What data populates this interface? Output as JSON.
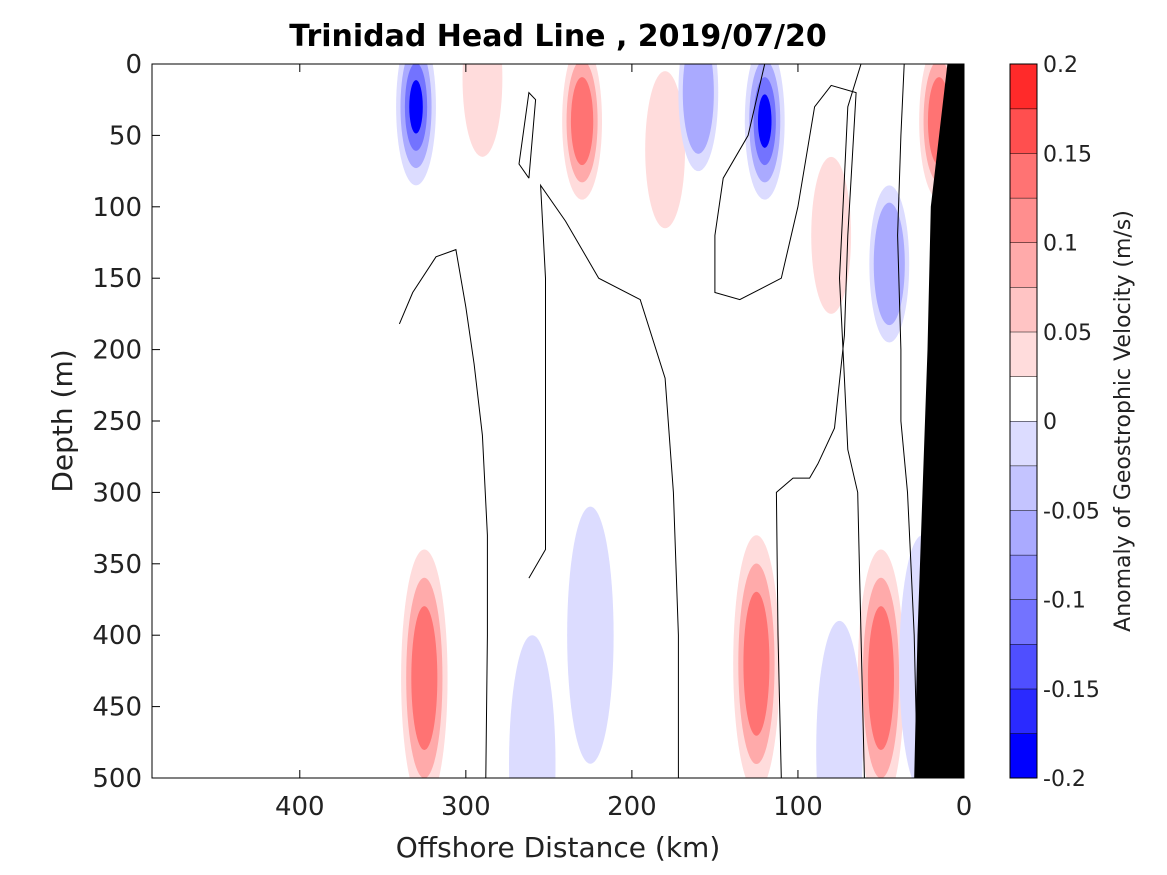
{
  "chart_data": {
    "type": "contour",
    "title": "Trinidad Head Line , 2019/07/20",
    "xlabel": "Offshore Distance (km)",
    "ylabel": "Depth (m)",
    "xlim": [
      489,
      0
    ],
    "ylim": [
      0,
      500
    ],
    "y_reversed": true,
    "x_reversed": true,
    "grid": false,
    "x_ticks": [
      400,
      300,
      200,
      100,
      0
    ],
    "y_ticks": [
      0,
      50,
      100,
      150,
      200,
      250,
      300,
      350,
      400,
      450,
      500
    ],
    "colorbar": {
      "label": "Anomaly of Geostrophic Velocity (m/s)",
      "range": [
        -0.2,
        0.2
      ],
      "levels": [
        -0.2,
        -0.175,
        -0.15,
        -0.125,
        -0.1,
        -0.075,
        -0.05,
        -0.025,
        0,
        0.025,
        0.05,
        0.075,
        0.1,
        0.125,
        0.15,
        0.175,
        0.2
      ],
      "tick_values": [
        0.2,
        0.15,
        0.1,
        0.05,
        0,
        -0.05,
        -0.1,
        -0.15,
        -0.2
      ],
      "tick_labels": [
        "0.2",
        "0.15",
        "0.1",
        "0.05",
        "0",
        "-0.05",
        "-0.1",
        "-0.15",
        "-0.2"
      ]
    },
    "colors": {
      "neg3": "#0000ff",
      "neg2": "#7373ff",
      "neg1": "#aaaaff",
      "neg0": "#dcdcff",
      "zero": "#ffffff",
      "pos0": "#ffdcdc",
      "pos1": "#ffaaaa",
      "pos2": "#ff7373",
      "pos3": "#ff0000",
      "bathymetry": "#000000"
    },
    "data_extent": {
      "x_min": 0,
      "x_max": 340
    },
    "features": [
      {
        "type": "negative",
        "x_center": 330,
        "depth_center": 30,
        "peak": -0.13
      },
      {
        "type": "positive",
        "x_center": 290,
        "depth_center": 10,
        "peak": 0.05
      },
      {
        "type": "positive",
        "x_center": 230,
        "depth_center": 40,
        "peak": 0.12
      },
      {
        "type": "positive",
        "x_center": 180,
        "depth_center": 60,
        "peak": 0.05
      },
      {
        "type": "negative",
        "x_center": 160,
        "depth_center": 20,
        "peak": -0.07
      },
      {
        "type": "negative",
        "x_center": 120,
        "depth_center": 40,
        "peak": -0.14
      },
      {
        "type": "positive",
        "x_center": 80,
        "depth_center": 120,
        "peak": 0.04
      },
      {
        "type": "negative",
        "x_center": 45,
        "depth_center": 140,
        "peak": -0.08
      },
      {
        "type": "positive",
        "x_center": 15,
        "depth_center": 40,
        "peak": 0.12
      },
      {
        "type": "negative",
        "x_center": 225,
        "depth_center": 400,
        "peak": -0.04
      },
      {
        "type": "positive",
        "x_center": 125,
        "depth_center": 420,
        "peak": 0.09
      },
      {
        "type": "positive",
        "x_center": 325,
        "depth_center": 430,
        "peak": 0.09
      },
      {
        "type": "positive",
        "x_center": 50,
        "depth_center": 430,
        "peak": 0.09
      },
      {
        "type": "negative",
        "x_center": 75,
        "depth_center": 480,
        "peak": -0.04
      },
      {
        "type": "negative",
        "x_center": 260,
        "depth_center": 490,
        "peak": -0.04
      },
      {
        "type": "negative",
        "x_center": 25,
        "depth_center": 420,
        "peak": -0.05
      }
    ],
    "zero_contours": [
      [
        [
          340,
          182
        ],
        [
          332,
          160
        ],
        [
          318,
          135
        ],
        [
          306,
          130
        ],
        [
          300,
          170
        ],
        [
          295,
          210
        ],
        [
          290,
          260
        ],
        [
          287,
          330
        ],
        [
          287,
          400
        ],
        [
          288,
          500
        ]
      ],
      [
        [
          262,
          80
        ],
        [
          268,
          70
        ],
        [
          262,
          20
        ],
        [
          258,
          25
        ],
        [
          262,
          80
        ]
      ],
      [
        [
          262,
          360
        ],
        [
          252,
          340
        ],
        [
          252,
          240
        ],
        [
          252,
          150
        ],
        [
          255,
          85
        ],
        [
          240,
          110
        ],
        [
          220,
          150
        ],
        [
          195,
          165
        ],
        [
          180,
          220
        ],
        [
          175,
          300
        ],
        [
          172,
          400
        ],
        [
          172,
          500
        ]
      ],
      [
        [
          110,
          500
        ],
        [
          112,
          400
        ],
        [
          113,
          300
        ],
        [
          103,
          290
        ],
        [
          93,
          290
        ],
        [
          88,
          280
        ],
        [
          78,
          255
        ],
        [
          72,
          190
        ],
        [
          70,
          120
        ],
        [
          65,
          20
        ],
        [
          80,
          15
        ],
        [
          90,
          30
        ],
        [
          100,
          100
        ],
        [
          110,
          150
        ],
        [
          135,
          165
        ],
        [
          150,
          160
        ],
        [
          150,
          120
        ],
        [
          145,
          80
        ],
        [
          130,
          50
        ],
        [
          120,
          0
        ]
      ],
      [
        [
          60,
          500
        ],
        [
          62,
          400
        ],
        [
          64,
          300
        ],
        [
          70,
          270
        ],
        [
          72,
          220
        ],
        [
          75,
          150
        ],
        [
          72,
          80
        ],
        [
          70,
          30
        ],
        [
          62,
          0
        ]
      ],
      [
        [
          28,
          500
        ],
        [
          30,
          400
        ],
        [
          32,
          350
        ],
        [
          34,
          300
        ],
        [
          38,
          250
        ],
        [
          38,
          200
        ],
        [
          40,
          120
        ],
        [
          38,
          50
        ],
        [
          36,
          0
        ]
      ]
    ],
    "bathymetry": [
      [
        10,
        0
      ],
      [
        20,
        100
      ],
      [
        22,
        200
      ],
      [
        25,
        300
      ],
      [
        28,
        400
      ],
      [
        30,
        500
      ],
      [
        0,
        500
      ],
      [
        0,
        0
      ]
    ]
  }
}
